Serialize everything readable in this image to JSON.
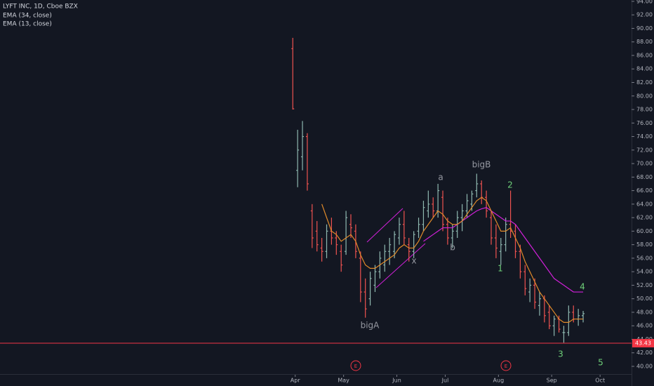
{
  "chart_data": {
    "type": "ohlc",
    "title": "LYFT INC, 1D, Cboe BZX",
    "up_color": "#8fb8b0",
    "down_color": "#ef5350",
    "x": [
      0,
      2,
      4,
      6,
      8,
      10,
      12,
      14,
      16,
      18,
      20,
      22,
      24,
      26,
      28,
      30,
      32,
      34,
      36,
      38,
      40,
      42,
      44,
      46,
      48,
      50,
      52,
      54,
      56,
      58,
      60,
      62,
      64,
      66,
      68,
      70,
      72,
      74,
      76,
      78,
      80,
      82,
      84,
      86,
      88,
      90,
      92,
      94,
      96,
      98,
      100,
      102,
      104,
      106,
      108,
      110,
      112,
      114,
      116,
      118,
      120
    ],
    "open": [
      87,
      69,
      71,
      74,
      63,
      60,
      57.5,
      57,
      60,
      59,
      57,
      57,
      61,
      60,
      56,
      51,
      50,
      52,
      54,
      55,
      57,
      57,
      59,
      61,
      58,
      57,
      60,
      61,
      63,
      64,
      63,
      65,
      61,
      59,
      60,
      62,
      63,
      64,
      66,
      67,
      65,
      62,
      59,
      57,
      58,
      61,
      60,
      57,
      54,
      51,
      52,
      49,
      50,
      48,
      46,
      47,
      45,
      45,
      48,
      47,
      47.5
    ],
    "high": [
      88.6,
      75,
      76.3,
      74.5,
      64,
      61.5,
      59,
      61,
      62,
      60,
      58,
      63,
      62.5,
      61,
      57,
      53,
      54,
      55,
      57,
      58,
      59,
      60,
      62,
      63,
      59,
      60,
      62,
      64.5,
      66,
      65,
      67,
      66,
      62,
      61,
      63,
      64,
      65.5,
      66,
      68.5,
      67.5,
      66,
      63,
      61,
      59,
      62,
      66,
      61,
      58,
      55,
      53,
      53,
      51,
      50.5,
      49,
      47.5,
      47.5,
      46,
      49,
      49,
      48.5,
      48.2
    ],
    "low": [
      78,
      66.5,
      69,
      66,
      57.5,
      57,
      55.5,
      56,
      58,
      56.5,
      54,
      56.5,
      59,
      56,
      49.5,
      47.2,
      49,
      51,
      53,
      54,
      55,
      56,
      58,
      58,
      55.5,
      56,
      59,
      60,
      62,
      62,
      62,
      60,
      58,
      57.5,
      59,
      60,
      62,
      63,
      65,
      64,
      62,
      58,
      56,
      55,
      57,
      59,
      56,
      53,
      50.5,
      49.5,
      48.5,
      47.5,
      46.5,
      45.5,
      44.5,
      45,
      43.5,
      44.5,
      46.5,
      46,
      46.5
    ],
    "close": [
      78.1,
      72,
      74,
      67,
      59,
      58,
      57,
      60,
      59,
      58,
      55,
      62,
      60.5,
      57,
      51,
      48.5,
      53,
      54,
      56,
      57,
      58,
      59.5,
      61,
      59,
      57,
      59.5,
      61,
      63.5,
      64,
      63,
      66,
      61,
      59,
      60,
      62,
      63,
      64.5,
      65.5,
      67,
      65,
      63,
      59,
      57.5,
      58,
      61,
      60,
      57,
      54,
      51.5,
      52,
      49.5,
      50,
      47.5,
      46,
      47,
      45.5,
      45,
      48,
      47,
      47.5,
      47.8
    ],
    "series": [
      {
        "name": "EMA (34, close)",
        "color": "#d020d8",
        "values": [
          null,
          null,
          null,
          null,
          null,
          null,
          null,
          null,
          null,
          null,
          null,
          null,
          null,
          null,
          null,
          null,
          null,
          null,
          null,
          null,
          null,
          null,
          null,
          null,
          null,
          null,
          null,
          58.5,
          59,
          59.5,
          60,
          60.5,
          60.5,
          60.5,
          61,
          61.5,
          62,
          62.5,
          63,
          63.3,
          63.5,
          63,
          62.5,
          62,
          61.5,
          61.5,
          61,
          60,
          59,
          58,
          57,
          56,
          55,
          54,
          53,
          52.5,
          52,
          51.5,
          51,
          51,
          51
        ]
      },
      {
        "name": "EMA (13, close)",
        "color": "#e08a2a",
        "values": [
          null,
          null,
          null,
          null,
          null,
          null,
          64,
          62,
          60,
          59.5,
          58.5,
          59,
          59.5,
          58.5,
          56.5,
          55,
          54.5,
          54.5,
          55,
          55.5,
          56,
          56.5,
          57.5,
          58,
          57.5,
          57.5,
          58.5,
          60,
          61,
          62,
          63,
          62.5,
          61.5,
          61,
          61,
          61.5,
          62.5,
          63.5,
          64.5,
          65,
          64.5,
          63,
          61.5,
          60,
          60,
          60.5,
          59,
          57.5,
          55.5,
          54,
          52.5,
          51,
          50,
          49,
          48,
          47,
          46.5,
          46.5,
          47,
          47,
          47
        ]
      }
    ],
    "price_line": 43.43,
    "price_line_color": "#f23645",
    "events": [
      "E",
      "E"
    ],
    "annotations": [
      "bigA",
      "bigB",
      "a",
      "b",
      "x",
      "1",
      "2",
      "3",
      "4",
      "5"
    ],
    "xlim": [
      -121,
      140
    ],
    "xticks": [
      {
        "value": 1,
        "label": "Apr"
      },
      {
        "value": 21,
        "label": "May"
      },
      {
        "value": 43,
        "label": "Jun"
      },
      {
        "value": 63,
        "label": "Jul"
      },
      {
        "value": 85,
        "label": "Aug"
      },
      {
        "value": 107,
        "label": "Sep"
      },
      {
        "value": 127,
        "label": "Oct"
      }
    ],
    "ylim": [
      38.13,
      94.2
    ],
    "yticks": [
      {
        "value": 40,
        "label": "40.00"
      },
      {
        "value": 42,
        "label": "42.00"
      },
      {
        "value": 44,
        "label": "44.00"
      },
      {
        "value": 46,
        "label": "46.00"
      },
      {
        "value": 48,
        "label": "48.00"
      },
      {
        "value": 50,
        "label": "50.00"
      },
      {
        "value": 52,
        "label": "52.00"
      },
      {
        "value": 54,
        "label": "54.00"
      },
      {
        "value": 56,
        "label": "56.00"
      },
      {
        "value": 58,
        "label": "58.00"
      },
      {
        "value": 60,
        "label": "60.00"
      },
      {
        "value": 62,
        "label": "62.00"
      },
      {
        "value": 64,
        "label": "64.00"
      },
      {
        "value": 66,
        "label": "66.00"
      },
      {
        "value": 68,
        "label": "68.00"
      },
      {
        "value": 70,
        "label": "70.00"
      },
      {
        "value": 72,
        "label": "72.00"
      },
      {
        "value": 74,
        "label": "74.00"
      },
      {
        "value": 76,
        "label": "76.00"
      },
      {
        "value": 78,
        "label": "78.00"
      },
      {
        "value": 80,
        "label": "80.00"
      },
      {
        "value": 82,
        "label": "82.00"
      },
      {
        "value": 84,
        "label": "84.00"
      },
      {
        "value": 86,
        "label": "86.00"
      },
      {
        "value": 88,
        "label": "88.00"
      },
      {
        "value": 90,
        "label": "90.00"
      },
      {
        "value": 92,
        "label": "92.00"
      },
      {
        "value": 94,
        "label": "94.00"
      }
    ]
  }
}
